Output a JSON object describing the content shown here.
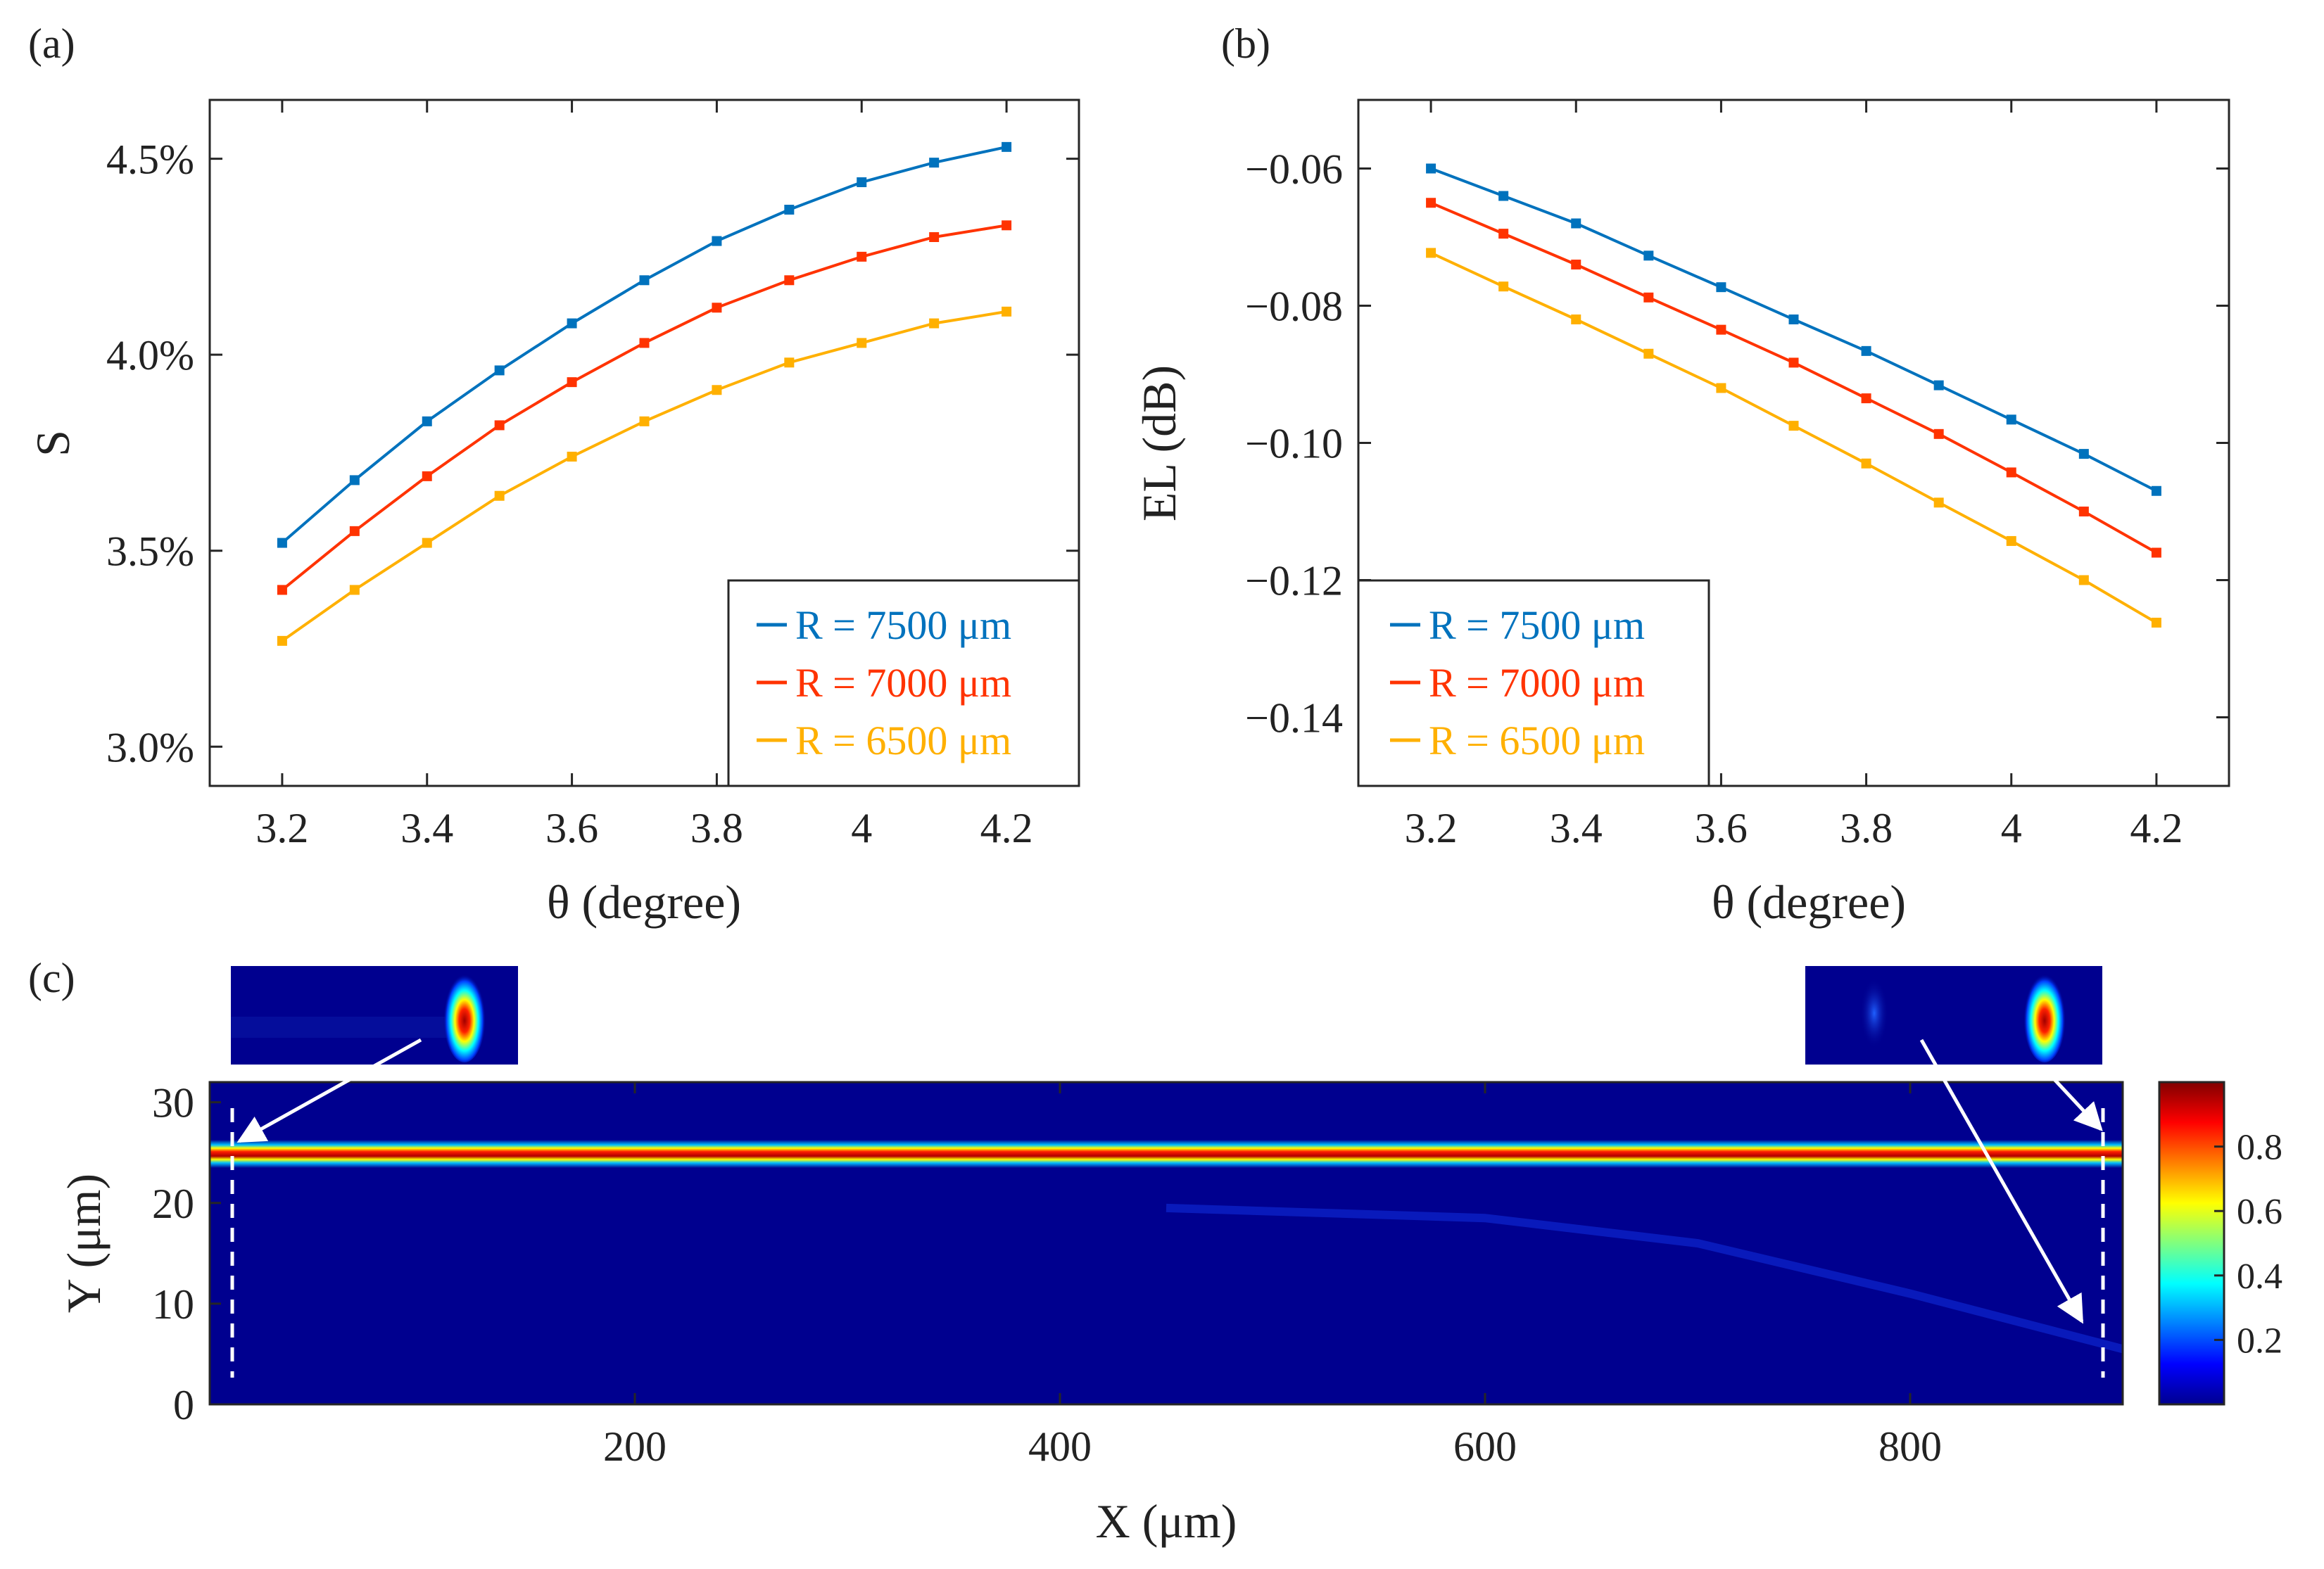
{
  "colors": {
    "series_1": "#0072BD",
    "series_2": "#FF3300",
    "series_3": "#FFB000",
    "field_background": "#00008F",
    "axis": "#262626"
  },
  "chart_data": [
    {
      "panel": "(a)",
      "type": "line",
      "xlabel": "θ (degree)",
      "ylabel": "S",
      "xlim": [
        3.1,
        4.3
      ],
      "ylim": [
        2.9,
        4.65
      ],
      "xticks": [
        3.2,
        3.4,
        3.6,
        3.8,
        4.0,
        4.2
      ],
      "xtick_labels": [
        "3.2",
        "3.4",
        "3.6",
        "3.8",
        "4",
        "4.2"
      ],
      "yticks": [
        3.0,
        3.5,
        4.0,
        4.5
      ],
      "ytick_labels": [
        "3.0%",
        "3.5%",
        "4.0%",
        "4.5%"
      ],
      "legend_position": "bottom-right",
      "x": [
        3.2,
        3.3,
        3.4,
        3.5,
        3.6,
        3.7,
        3.8,
        3.9,
        4.0,
        4.1,
        4.2
      ],
      "series": [
        {
          "name": "R = 7500 μm",
          "color": "#0072BD",
          "values": [
            3.52,
            3.68,
            3.83,
            3.96,
            4.08,
            4.19,
            4.29,
            4.37,
            4.44,
            4.49,
            4.53
          ]
        },
        {
          "name": "R = 7000 μm",
          "color": "#FF3300",
          "values": [
            3.4,
            3.55,
            3.69,
            3.82,
            3.93,
            4.03,
            4.12,
            4.19,
            4.25,
            4.3,
            4.33
          ]
        },
        {
          "name": "R = 6500 μm",
          "color": "#FFB000",
          "values": [
            3.27,
            3.4,
            3.52,
            3.64,
            3.74,
            3.83,
            3.91,
            3.98,
            4.03,
            4.08,
            4.11
          ]
        }
      ]
    },
    {
      "panel": "(b)",
      "type": "line",
      "xlabel": "θ (degree)",
      "ylabel": "EL (dB)",
      "xlim": [
        3.1,
        4.3
      ],
      "ylim": [
        -0.15,
        -0.05
      ],
      "xticks": [
        3.2,
        3.4,
        3.6,
        3.8,
        4.0,
        4.2
      ],
      "xtick_labels": [
        "3.2",
        "3.4",
        "3.6",
        "3.8",
        "4",
        "4.2"
      ],
      "yticks": [
        -0.06,
        -0.08,
        -0.1,
        -0.12,
        -0.14
      ],
      "ytick_labels": [
        "−0.06",
        "−0.08",
        "−0.10",
        "−0.12",
        "−0.14"
      ],
      "legend_position": "bottom-left",
      "x": [
        3.2,
        3.3,
        3.4,
        3.5,
        3.6,
        3.7,
        3.8,
        3.9,
        4.0,
        4.1,
        4.2
      ],
      "series": [
        {
          "name": "R = 7500 μm",
          "color": "#0072BD",
          "values": [
            -0.06,
            -0.064,
            -0.068,
            -0.0727,
            -0.0773,
            -0.082,
            -0.0866,
            -0.0916,
            -0.0966,
            -0.1016,
            -0.107
          ]
        },
        {
          "name": "R = 7000 μm",
          "color": "#FF3300",
          "values": [
            -0.065,
            -0.0695,
            -0.074,
            -0.0788,
            -0.0835,
            -0.0883,
            -0.0935,
            -0.0987,
            -0.1043,
            -0.11,
            -0.116
          ]
        },
        {
          "name": "R = 6500 μm",
          "color": "#FFB000",
          "values": [
            -0.0723,
            -0.0772,
            -0.082,
            -0.087,
            -0.092,
            -0.0975,
            -0.103,
            -0.1087,
            -0.1143,
            -0.12,
            -0.1262
          ]
        }
      ]
    },
    {
      "panel": "(c)",
      "type": "heatmap",
      "xlabel": "X (μm)",
      "ylabel": "Y (μm)",
      "xlim": [
        0,
        900
      ],
      "ylim": [
        0,
        32
      ],
      "xticks": [
        200,
        400,
        600,
        800
      ],
      "xtick_labels": [
        "200",
        "400",
        "600",
        "800"
      ],
      "yticks": [
        0,
        10,
        20,
        30
      ],
      "ytick_labels": [
        "0",
        "10",
        "20",
        "30"
      ],
      "colorbar_range": [
        0,
        1
      ],
      "colorbar_ticks": [
        0.2,
        0.4,
        0.6,
        0.8
      ],
      "colorbar_tick_labels": [
        "0.2",
        "0.4",
        "0.6",
        "0.8"
      ],
      "bus_waveguide_y": 24.7,
      "coupled_path": {
        "x": [
          450,
          600,
          700,
          800,
          900
        ],
        "y": [
          19.5,
          18.5,
          16,
          11,
          5.5
        ]
      },
      "monitor_lines_x": [
        8,
        892
      ],
      "inset_left": "mode profile at X ≈ 8 μm",
      "inset_right": "mode profile at X ≈ 892 μm"
    }
  ]
}
